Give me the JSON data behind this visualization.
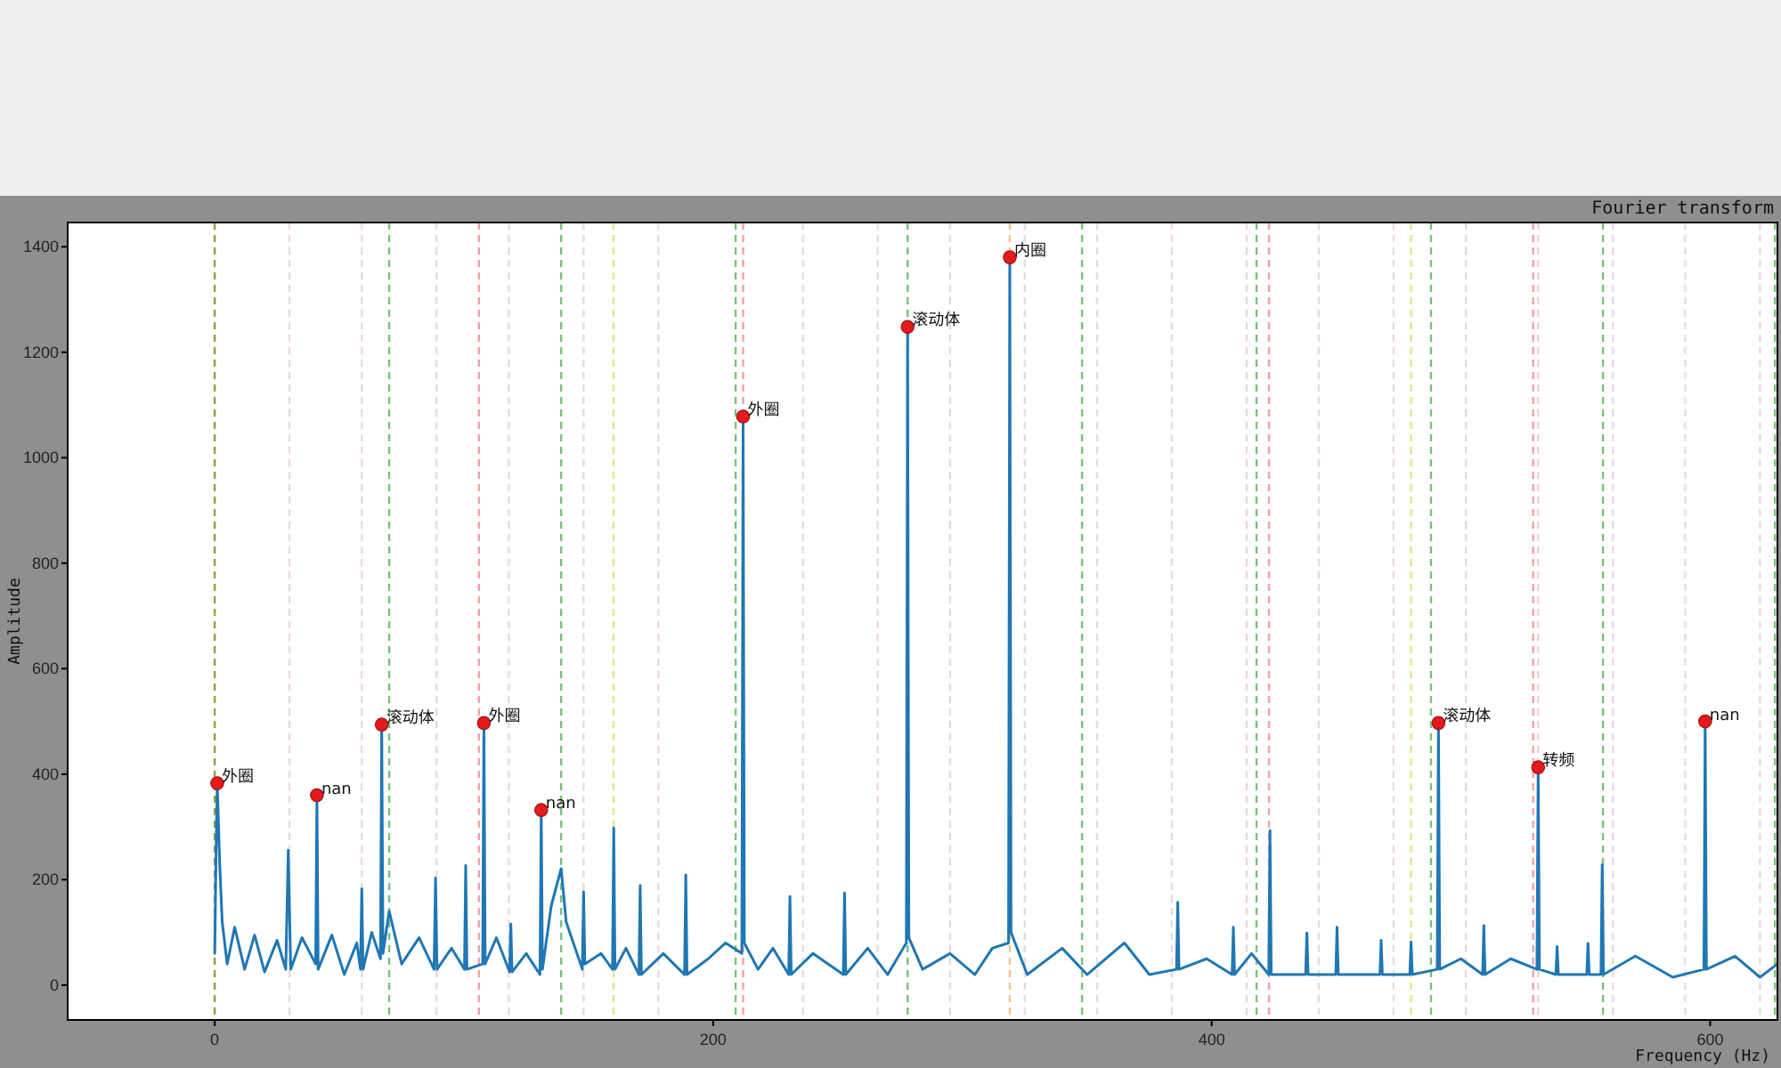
{
  "chart_data": {
    "type": "line",
    "title": "Fourier transform",
    "xlabel": "Frequency (Hz)",
    "ylabel": "Amplitude",
    "xlim": [
      -59,
      627
    ],
    "ylim": [
      -66,
      1446
    ],
    "xticks": [
      0,
      200,
      400,
      600
    ],
    "yticks": [
      0,
      200,
      400,
      600,
      800,
      1000,
      1200,
      1400
    ],
    "series": [
      {
        "color": "#1f77b4",
        "x": [
          0,
          0.5,
          1,
          2,
          3,
          5,
          8,
          12,
          16,
          20,
          25,
          28.5,
          29.5,
          30.5,
          35,
          40.5,
          41,
          41.5,
          47,
          52,
          57,
          58.5,
          59,
          59.5,
          63,
          66.5,
          67,
          67.5,
          70,
          75,
          82,
          88,
          88.6,
          89.2,
          95,
          100.2,
          100.7,
          101.2,
          107.5,
          108,
          108.5,
          113,
          118.3,
          118.8,
          119.3,
          125,
          130.5,
          131,
          131.5,
          135,
          139,
          141,
          147.5,
          148,
          148.5,
          155,
          159.6,
          160.1,
          160.6,
          165,
          170.2,
          170.7,
          171.2,
          180,
          188.5,
          189,
          189.5,
          198,
          205,
          211.5,
          212,
          212.5,
          218,
          224,
          230.3,
          230.8,
          231.3,
          240,
          252.2,
          252.7,
          253.2,
          262,
          270,
          277.5,
          278,
          278.5,
          284,
          295,
          305,
          312,
          318.5,
          319,
          319.5,
          326,
          340,
          350,
          365,
          375,
          385.9,
          386.4,
          386.9,
          398,
          408.2,
          408.7,
          409.2,
          416,
          422.9,
          423.4,
          423.9,
          437.7,
          438.2,
          438.7,
          449.8,
          450.3,
          450.8,
          467.5,
          468,
          468.5,
          479.5,
          480,
          480.5,
          490.5,
          491,
          491.5,
          500,
          508.7,
          509.2,
          509.7,
          520,
          530.5,
          531,
          531.5,
          538.1,
          538.6,
          539.1,
          550.5,
          551,
          551.5,
          556.2,
          556.7,
          557.2,
          570,
          585,
          597.5,
          598,
          598.5,
          610,
          620,
          627
        ],
        "values": [
          60,
          240,
          383,
          230,
          120,
          40,
          110,
          30,
          95,
          25,
          85,
          30,
          256,
          30,
          90,
          40,
          360,
          30,
          95,
          20,
          80,
          30,
          183,
          30,
          100,
          50,
          494,
          60,
          140,
          40,
          90,
          30,
          203,
          30,
          70,
          30,
          227,
          30,
          40,
          497,
          40,
          90,
          25,
          116,
          25,
          60,
          20,
          332,
          30,
          150,
          221,
          120,
          30,
          177,
          40,
          60,
          30,
          298,
          30,
          70,
          20,
          189,
          20,
          60,
          20,
          209,
          20,
          50,
          80,
          60,
          1078,
          80,
          30,
          70,
          20,
          168,
          20,
          60,
          20,
          175,
          20,
          70,
          20,
          80,
          1248,
          90,
          30,
          60,
          20,
          70,
          80,
          1380,
          100,
          20,
          70,
          20,
          80,
          20,
          30,
          157,
          30,
          50,
          20,
          110,
          20,
          60,
          20,
          293,
          20,
          20,
          99,
          20,
          20,
          110,
          20,
          20,
          85,
          20,
          20,
          82,
          20,
          30,
          497,
          30,
          50,
          20,
          113,
          20,
          50,
          30,
          413,
          30,
          20,
          73,
          20,
          20,
          79,
          20,
          20,
          228,
          20,
          55,
          15,
          30,
          500,
          30,
          55,
          15,
          40
        ]
      },
      {
        "type": "scatter",
        "color": "#e41a1c",
        "marker": "circle",
        "x": [
          1,
          41,
          67,
          108,
          131,
          212,
          278,
          319,
          491,
          531,
          598
        ],
        "values": [
          383,
          360,
          494,
          497,
          332,
          1078,
          1248,
          1380,
          497,
          413,
          500
        ]
      }
    ],
    "annotations": [
      {
        "text": "外圈",
        "x": 1,
        "y": 383
      },
      {
        "text": "nan",
        "x": 41,
        "y": 360
      },
      {
        "text": "滚动体",
        "x": 67,
        "y": 494
      },
      {
        "text": "外圈",
        "x": 108,
        "y": 497
      },
      {
        "text": "nan",
        "x": 131,
        "y": 332
      },
      {
        "text": "外圈",
        "x": 212,
        "y": 1078
      },
      {
        "text": "滚动体",
        "x": 278,
        "y": 1248
      },
      {
        "text": "内圈",
        "x": 319,
        "y": 1380
      },
      {
        "text": "滚动体",
        "x": 491,
        "y": 497
      },
      {
        "text": "转频",
        "x": 531,
        "y": 413
      },
      {
        "text": "nan",
        "x": 598,
        "y": 500
      }
    ],
    "ref_lines": [
      {
        "axis": "x",
        "value": 0,
        "color": "#9c9c3c",
        "line_style": "dashed"
      },
      {
        "axis": "x",
        "value": 30,
        "color": "#eadada",
        "line_style": "dashed"
      },
      {
        "axis": "x",
        "value": 59,
        "color": "#eadada",
        "line_style": "dashed"
      },
      {
        "axis": "x",
        "value": 70,
        "color": "#77c277",
        "line_style": "dashed"
      },
      {
        "axis": "x",
        "value": 89,
        "color": "#eadada",
        "line_style": "dashed"
      },
      {
        "axis": "x",
        "value": 106,
        "color": "#f4a0a8",
        "line_style": "dashed"
      },
      {
        "axis": "x",
        "value": 118,
        "color": "#eadada",
        "line_style": "dashed"
      },
      {
        "axis": "x",
        "value": 139,
        "color": "#77c277",
        "line_style": "dashed"
      },
      {
        "axis": "x",
        "value": 148,
        "color": "#eadada",
        "line_style": "dashed"
      },
      {
        "axis": "x",
        "value": 160,
        "color": "#e5e58a",
        "line_style": "dashed"
      },
      {
        "axis": "x",
        "value": 178,
        "color": "#eadada",
        "line_style": "dashed"
      },
      {
        "axis": "x",
        "value": 209,
        "color": "#77c277",
        "line_style": "dashed"
      },
      {
        "axis": "x",
        "value": 212,
        "color": "#f4a0a8",
        "line_style": "dashed"
      },
      {
        "axis": "x",
        "value": 236,
        "color": "#eadada",
        "line_style": "dashed"
      },
      {
        "axis": "x",
        "value": 266,
        "color": "#eadada",
        "line_style": "dashed"
      },
      {
        "axis": "x",
        "value": 278,
        "color": "#77c277",
        "line_style": "dashed"
      },
      {
        "axis": "x",
        "value": 295,
        "color": "#eadada",
        "line_style": "dashed"
      },
      {
        "axis": "x",
        "value": 319,
        "color": "#f2c28a",
        "line_style": "dashed"
      },
      {
        "axis": "x",
        "value": 325,
        "color": "#eadada",
        "line_style": "dashed"
      },
      {
        "axis": "x",
        "value": 348,
        "color": "#77c277",
        "line_style": "dashed"
      },
      {
        "axis": "x",
        "value": 354,
        "color": "#eadada",
        "line_style": "dashed"
      },
      {
        "axis": "x",
        "value": 384,
        "color": "#eadada",
        "line_style": "dashed"
      },
      {
        "axis": "x",
        "value": 414,
        "color": "#eadada",
        "line_style": "dashed"
      },
      {
        "axis": "x",
        "value": 418,
        "color": "#77c277",
        "line_style": "dashed"
      },
      {
        "axis": "x",
        "value": 423,
        "color": "#f4a0a8",
        "line_style": "dashed"
      },
      {
        "axis": "x",
        "value": 443,
        "color": "#eadada",
        "line_style": "dashed"
      },
      {
        "axis": "x",
        "value": 473,
        "color": "#eadada",
        "line_style": "dashed"
      },
      {
        "axis": "x",
        "value": 480,
        "color": "#e5e58a",
        "line_style": "dashed"
      },
      {
        "axis": "x",
        "value": 488,
        "color": "#77c277",
        "line_style": "dashed"
      },
      {
        "axis": "x",
        "value": 502,
        "color": "#eadada",
        "line_style": "dashed"
      },
      {
        "axis": "x",
        "value": 529,
        "color": "#f4a0a8",
        "line_style": "dashed"
      },
      {
        "axis": "x",
        "value": 531,
        "color": "#f0d0d4",
        "line_style": "dashed"
      },
      {
        "axis": "x",
        "value": 557,
        "color": "#77c277",
        "line_style": "dashed"
      },
      {
        "axis": "x",
        "value": 561,
        "color": "#eadada",
        "line_style": "dashed"
      },
      {
        "axis": "x",
        "value": 590,
        "color": "#eadada",
        "line_style": "dashed"
      },
      {
        "axis": "x",
        "value": 620,
        "color": "#eadada",
        "line_style": "dashed"
      },
      {
        "axis": "x",
        "value": 626,
        "color": "#77c277",
        "line_style": "dashed"
      }
    ]
  }
}
